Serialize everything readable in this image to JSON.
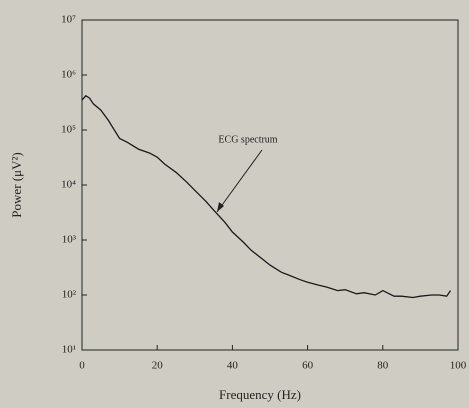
{
  "chart_data": {
    "type": "line",
    "x_label": "Frequency (Hz)",
    "y_label": "Power (μV²)",
    "annotation": "ECG spectrum",
    "x": [
      0,
      1,
      2,
      3,
      5,
      7,
      10,
      12,
      15,
      18,
      20,
      22,
      25,
      28,
      30,
      33,
      35,
      38,
      40,
      43,
      45,
      48,
      50,
      53,
      55,
      58,
      60,
      63,
      65,
      68,
      70,
      73,
      75,
      78,
      80,
      83,
      85,
      88,
      90,
      93,
      95,
      97,
      98
    ],
    "values": [
      350000,
      420000,
      380000,
      300000,
      230000,
      150000,
      70000,
      60000,
      45000,
      38000,
      32000,
      24000,
      17000,
      11000,
      8000,
      5000,
      3500,
      2100,
      1400,
      900,
      650,
      450,
      350,
      260,
      230,
      190,
      170,
      150,
      140,
      120,
      125,
      105,
      110,
      100,
      120,
      95,
      95,
      90,
      95,
      100,
      100,
      95,
      120
    ],
    "color": "#1a1a1a",
    "log_y": true,
    "xlim": [
      0,
      100
    ],
    "xticks": [
      0,
      20,
      40,
      60,
      80,
      100
    ],
    "ylim": [
      10,
      10000000
    ],
    "yticks": [
      {
        "value": 10,
        "label": "10¹"
      },
      {
        "value": 100,
        "label": "10²"
      },
      {
        "value": 1000,
        "label": "10³"
      },
      {
        "value": 10000,
        "label": "10⁴"
      },
      {
        "value": 100000,
        "label": "10⁵"
      },
      {
        "value": 1000000,
        "label": "10⁶"
      },
      {
        "value": 10000000,
        "label": "10⁷"
      }
    ]
  }
}
